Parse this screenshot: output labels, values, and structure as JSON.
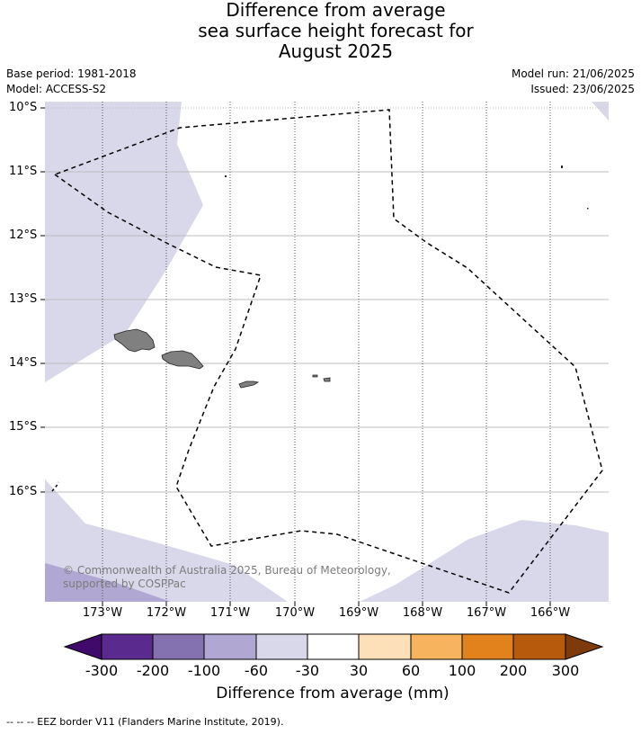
{
  "title": {
    "line1": "Difference from average",
    "line2": "sea surface height forecast for",
    "line3": "August 2025"
  },
  "meta": {
    "base_period": "Base period: 1981-2018",
    "model": "Model: ACCESS-S2",
    "model_run": "Model run: 21/06/2025",
    "issued": "Issued: 23/06/2025"
  },
  "axes": {
    "lat_labels": [
      "10°S",
      "11°S",
      "12°S",
      "13°S",
      "14°S",
      "15°S",
      "16°S"
    ],
    "lon_labels": [
      "173°W",
      "172°W",
      "171°W",
      "170°W",
      "169°W",
      "168°W",
      "167°W",
      "166°W"
    ]
  },
  "copyright": "© Commonwealth of Australia 2025, Bureau of Meteorology, supported by COSPPac",
  "colorbar": {
    "title": "Difference from average (mm)",
    "ticks": [
      "-300",
      "-200",
      "-100",
      "-60",
      "-30",
      "30",
      "60",
      "100",
      "200",
      "300"
    ],
    "colors": [
      "#3f0a6b",
      "#5b2a8f",
      "#8472b0",
      "#b0a8d2",
      "#d8d8ea",
      "#ffffff",
      "#fde0b8",
      "#f8b35e",
      "#e2821d",
      "#b85a0c",
      "#7d3a0a"
    ]
  },
  "footer": "--  --  -- EEZ border V11 (Flanders Marine Institute, 2019)."
}
